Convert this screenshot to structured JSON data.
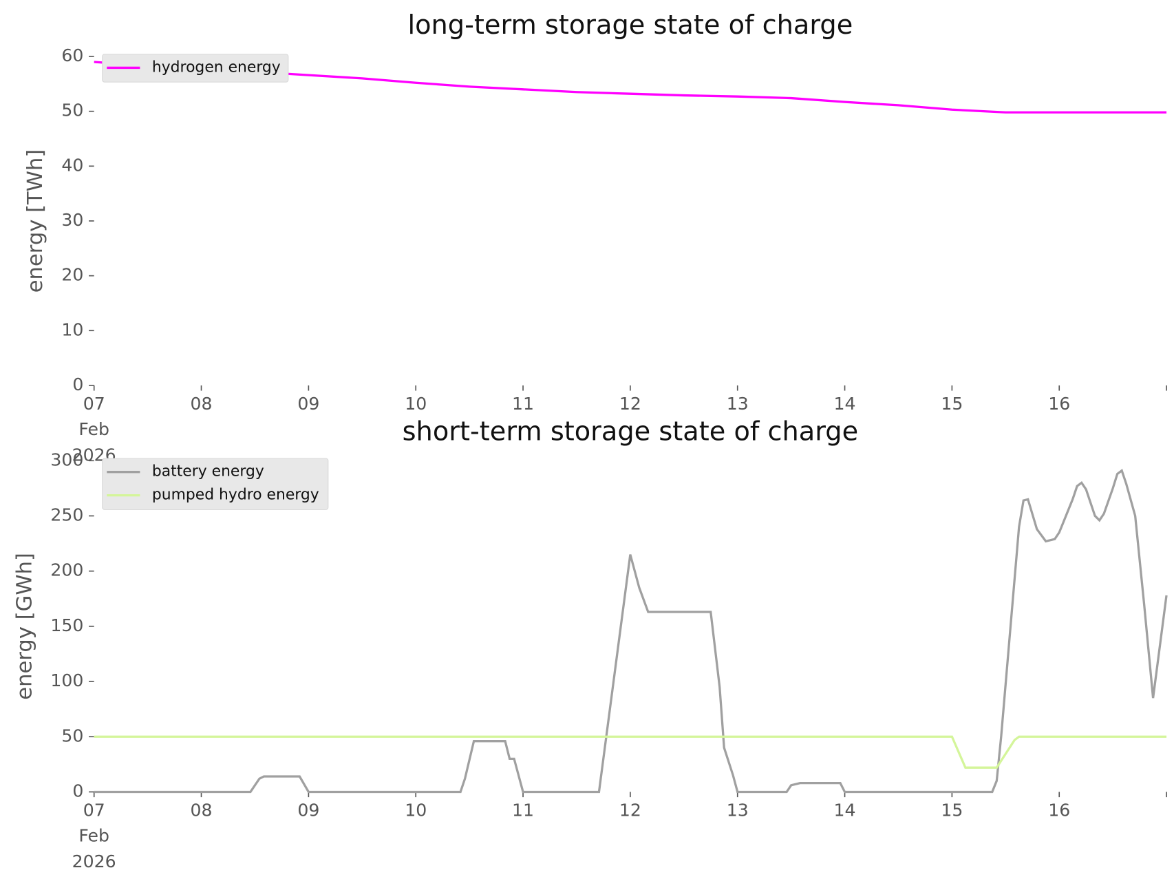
{
  "chart_data": [
    {
      "type": "line",
      "title": "long-term storage state of charge",
      "y_label": "energy [TWh]",
      "xlim": [
        "2026-02-07T00:00",
        "2026-02-17T00:00"
      ],
      "xticks": [
        {
          "value": "2026-02-07T00:00",
          "label": "07\nFeb\n2026"
        },
        {
          "value": "2026-02-08T00:00",
          "label": "08"
        },
        {
          "value": "2026-02-09T00:00",
          "label": "09"
        },
        {
          "value": "2026-02-10T00:00",
          "label": "10"
        },
        {
          "value": "2026-02-11T00:00",
          "label": "11"
        },
        {
          "value": "2026-02-12T00:00",
          "label": "12"
        },
        {
          "value": "2026-02-13T00:00",
          "label": "13"
        },
        {
          "value": "2026-02-14T00:00",
          "label": "14"
        },
        {
          "value": "2026-02-15T00:00",
          "label": "15"
        },
        {
          "value": "2026-02-16T00:00",
          "label": "16"
        }
      ],
      "ylim": [
        0,
        60
      ],
      "yticks": [
        0,
        10,
        20,
        30,
        40,
        50,
        60
      ],
      "legend": "upper left",
      "series": [
        {
          "name": "hydrogen energy",
          "color": "#ff00ff",
          "x": [
            "2026-02-07T00:00",
            "2026-02-07T12:00",
            "2026-02-08T00:00",
            "2026-02-08T12:00",
            "2026-02-09T00:00",
            "2026-02-09T12:00",
            "2026-02-10T00:00",
            "2026-02-10T12:00",
            "2026-02-11T00:00",
            "2026-02-11T12:00",
            "2026-02-12T00:00",
            "2026-02-12T12:00",
            "2026-02-13T00:00",
            "2026-02-13T12:00",
            "2026-02-14T00:00",
            "2026-02-14T12:00",
            "2026-02-15T00:00",
            "2026-02-15T12:00",
            "2026-02-16T00:00",
            "2026-02-16T12:00",
            "2026-02-17T00:00"
          ],
          "values": [
            59,
            58.3,
            57.6,
            57.2,
            56.6,
            56.0,
            55.2,
            54.5,
            54.0,
            53.5,
            53.2,
            52.9,
            52.7,
            52.4,
            51.7,
            51.1,
            50.3,
            49.8,
            49.8,
            49.8,
            49.8
          ]
        }
      ]
    },
    {
      "type": "line",
      "title": "short-term storage state of charge",
      "y_label": "energy [GWh]",
      "xlim": [
        "2026-02-07T00:00",
        "2026-02-17T00:00"
      ],
      "xticks": [
        {
          "value": "2026-02-07T00:00",
          "label": "07\nFeb\n2026"
        },
        {
          "value": "2026-02-08T00:00",
          "label": "08"
        },
        {
          "value": "2026-02-09T00:00",
          "label": "09"
        },
        {
          "value": "2026-02-10T00:00",
          "label": "10"
        },
        {
          "value": "2026-02-11T00:00",
          "label": "11"
        },
        {
          "value": "2026-02-12T00:00",
          "label": "12"
        },
        {
          "value": "2026-02-13T00:00",
          "label": "13"
        },
        {
          "value": "2026-02-14T00:00",
          "label": "14"
        },
        {
          "value": "2026-02-15T00:00",
          "label": "15"
        },
        {
          "value": "2026-02-16T00:00",
          "label": "16"
        }
      ],
      "ylim": [
        0,
        300
      ],
      "yticks": [
        0,
        50,
        100,
        150,
        200,
        250,
        300
      ],
      "legend": "upper left",
      "series": [
        {
          "name": "battery energy",
          "color": "#a0a0a0",
          "x": [
            "2026-02-07T00:00",
            "2026-02-08T11:00",
            "2026-02-08T13:00",
            "2026-02-08T14:00",
            "2026-02-08T22:00",
            "2026-02-09T00:00",
            "2026-02-10T10:00",
            "2026-02-10T11:00",
            "2026-02-10T13:00",
            "2026-02-10T20:00",
            "2026-02-10T21:00",
            "2026-02-10T22:00",
            "2026-02-11T00:00",
            "2026-02-11T17:00",
            "2026-02-12T00:00",
            "2026-02-12T02:00",
            "2026-02-12T04:00",
            "2026-02-12T18:00",
            "2026-02-12T20:00",
            "2026-02-12T21:00",
            "2026-02-12T23:00",
            "2026-02-13T00:00",
            "2026-02-13T11:00",
            "2026-02-13T12:00",
            "2026-02-13T14:00",
            "2026-02-13T23:00",
            "2026-02-14T00:00",
            "2026-02-15T09:00",
            "2026-02-15T10:00",
            "2026-02-15T11:00",
            "2026-02-15T15:00",
            "2026-02-15T16:00",
            "2026-02-15T17:00",
            "2026-02-15T19:00",
            "2026-02-15T21:00",
            "2026-02-15T23:00",
            "2026-02-16T00:00",
            "2026-02-16T01:00",
            "2026-02-16T03:00",
            "2026-02-16T04:00",
            "2026-02-16T05:00",
            "2026-02-16T06:00",
            "2026-02-16T08:00",
            "2026-02-16T09:00",
            "2026-02-16T10:00",
            "2026-02-16T12:00",
            "2026-02-16T13:00",
            "2026-02-16T14:00",
            "2026-02-16T15:00",
            "2026-02-16T17:00",
            "2026-02-16T19:00",
            "2026-02-16T21:00",
            "2026-02-17T00:00"
          ],
          "values": [
            0,
            0,
            12,
            14,
            14,
            0,
            0,
            12,
            46,
            46,
            30,
            30,
            0,
            0,
            215,
            185,
            163,
            163,
            95,
            40,
            15,
            0,
            0,
            6,
            8,
            8,
            0,
            0,
            10,
            50,
            240,
            264,
            265,
            238,
            227,
            229,
            235,
            245,
            265,
            277,
            280,
            274,
            250,
            246,
            252,
            275,
            288,
            291,
            279,
            250,
            170,
            85,
            178
          ]
        },
        {
          "name": "pumped hydro energy",
          "color": "#d4f59a",
          "x": [
            "2026-02-07T00:00",
            "2026-02-15T00:00",
            "2026-02-15T03:00",
            "2026-02-15T10:00",
            "2026-02-15T14:00",
            "2026-02-15T15:00",
            "2026-02-17T00:00"
          ],
          "values": [
            50,
            50,
            22,
            22,
            47,
            50,
            50
          ]
        }
      ]
    }
  ]
}
